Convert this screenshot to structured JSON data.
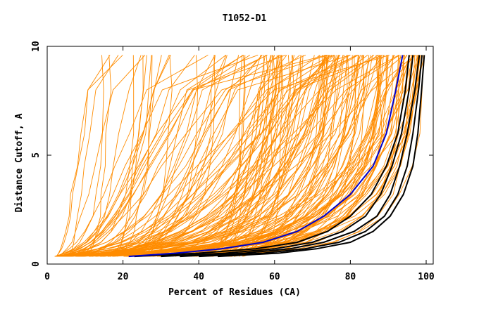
{
  "chart_data": {
    "type": "line",
    "title": "T1052-D1",
    "xlabel": "Percent of Residues (CA)",
    "ylabel": "Distance Cutoff, A",
    "xlim": [
      0,
      100
    ],
    "ylim": [
      0,
      10
    ],
    "xticks": [
      "0",
      "20",
      "40",
      "60",
      "80",
      "100"
    ],
    "yticks": [
      "0",
      "5",
      "10"
    ],
    "grid": false,
    "legend": "none",
    "colors": {
      "background": "#ffffff",
      "axes": "#000000",
      "bundle": "#ff8c00",
      "highlight": "#0000cc",
      "reference": "#000000"
    },
    "curve_y": [
      0.35,
      0.5,
      0.7,
      1.0,
      1.5,
      2.2,
      3.2,
      4.5,
      6.0,
      8.0,
      9.6
    ],
    "highlight_series": {
      "name": "",
      "x": [
        21.5,
        34,
        46,
        57,
        66,
        73,
        80,
        86,
        89.5,
        92,
        93.8
      ]
    },
    "reference_series": [
      {
        "name": "",
        "x": [
          23,
          40,
          55,
          66,
          74,
          80,
          85.5,
          89.5,
          92.5,
          94.5,
          95.5
        ]
      },
      {
        "name": "",
        "x": [
          30,
          47,
          60,
          70,
          78,
          84,
          88,
          91,
          93.5,
          95.5,
          96.5
        ]
      },
      {
        "name": "",
        "x": [
          35,
          52,
          64,
          73,
          81,
          87,
          90.5,
          93,
          95,
          97,
          98.2
        ]
      },
      {
        "name": "",
        "x": [
          40,
          57,
          68,
          77,
          84,
          89,
          92.5,
          95,
          96.5,
          98,
          98.9
        ]
      },
      {
        "name": "",
        "x": [
          45,
          61,
          71,
          80,
          86,
          90.5,
          94,
          96.5,
          97.8,
          98.8,
          99.5
        ]
      }
    ],
    "bundle": {
      "count": 170,
      "x_start_range": [
        2,
        52
      ],
      "x_end_range": [
        4,
        99.5
      ]
    }
  }
}
